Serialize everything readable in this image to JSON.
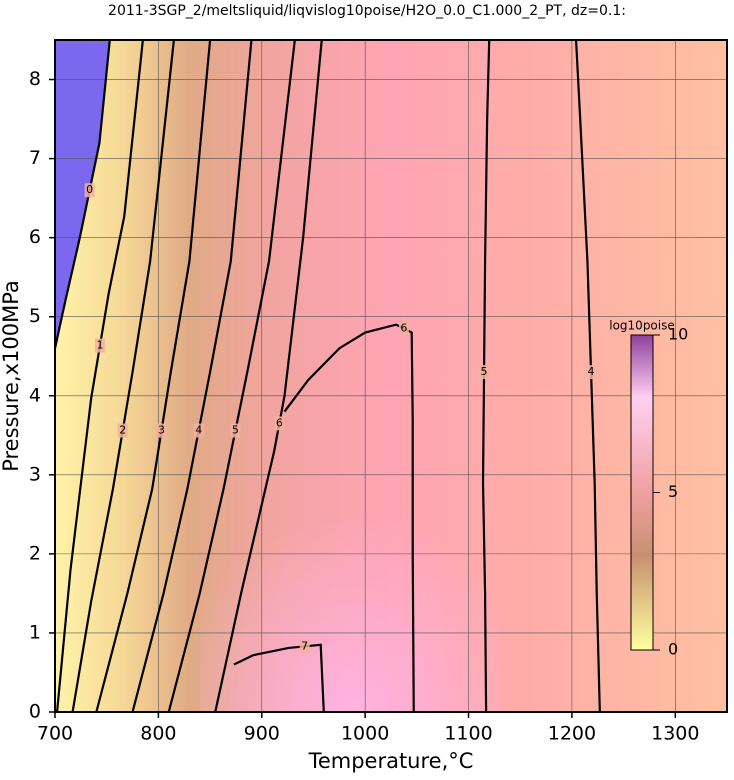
{
  "chart_data": {
    "type": "contour",
    "title": "2011-3SGP_2/meltsliquid/liqvislog10poise/H2O_0.0_C1.000_2_PT, dz=0.1:",
    "x_label": "Temperature,°C",
    "y_label": "Pressure,x100MPa",
    "xlim": [
      700,
      1350
    ],
    "ylim": [
      0,
      8.5
    ],
    "xticks": [
      700,
      800,
      900,
      1000,
      1100,
      1200,
      1300
    ],
    "yticks": [
      0,
      1,
      2,
      3,
      4,
      5,
      6,
      7,
      8
    ],
    "grid": true,
    "low_region_color": "#7b68ee",
    "contours": [
      {
        "level": 0,
        "x": [
          700,
          710,
          724,
          743,
          753
        ],
        "y": [
          4.6,
          5.2,
          6.0,
          7.2,
          8.5
        ]
      },
      {
        "level": 1,
        "x": [
          702,
          715,
          735,
          752,
          767,
          785
        ],
        "y": [
          0,
          1.8,
          3.97,
          5.3,
          6.27,
          8.5
        ]
      },
      {
        "level": 2,
        "x": [
          717,
          735,
          756,
          775,
          792,
          815
        ],
        "y": [
          0,
          1.4,
          2.82,
          4.3,
          5.7,
          8.5
        ]
      },
      {
        "level": 3,
        "x": [
          740,
          770,
          794,
          812,
          830,
          850
        ],
        "y": [
          0,
          1.5,
          2.82,
          4.3,
          5.7,
          8.5
        ]
      },
      {
        "level": 4,
        "x": [
          775,
          805,
          828,
          850,
          870,
          890
        ],
        "y": [
          0,
          1.5,
          2.82,
          4.3,
          5.7,
          8.5
        ]
      },
      {
        "level": 5,
        "x": [
          810,
          840,
          863,
          886,
          907,
          932
        ],
        "y": [
          0,
          1.5,
          2.82,
          4.3,
          5.7,
          8.5
        ]
      },
      {
        "level": 6,
        "x": [
          855,
          880,
          912,
          922,
          940,
          958
        ],
        "y": [
          0,
          1.5,
          3.3,
          4.0,
          6.0,
          8.5
        ]
      },
      {
        "level": 6,
        "x": [
          922,
          945,
          975,
          1000,
          1030,
          1045,
          1046,
          1046,
          1047
        ],
        "y": [
          3.8,
          4.2,
          4.6,
          4.8,
          4.9,
          4.8,
          3.7,
          2.0,
          0
        ]
      },
      {
        "level": 7,
        "x": [
          873,
          892,
          926,
          957,
          960
        ],
        "y": [
          0.6,
          0.72,
          0.81,
          0.85,
          0
        ]
      },
      {
        "level": 5,
        "x": [
          1117,
          1116,
          1114,
          1116,
          1118,
          1120
        ],
        "y": [
          0,
          1.5,
          2.9,
          5.7,
          7.5,
          8.5
        ]
      },
      {
        "level": 4,
        "x": [
          1227,
          1224,
          1222,
          1215,
          1208,
          1204
        ],
        "y": [
          0,
          1.5,
          2.9,
          5.7,
          7.5,
          8.5
        ]
      }
    ],
    "colorbar": {
      "label": "log10poise",
      "lim": [
        0,
        10
      ],
      "ticks": [
        0,
        5,
        10
      ]
    }
  }
}
